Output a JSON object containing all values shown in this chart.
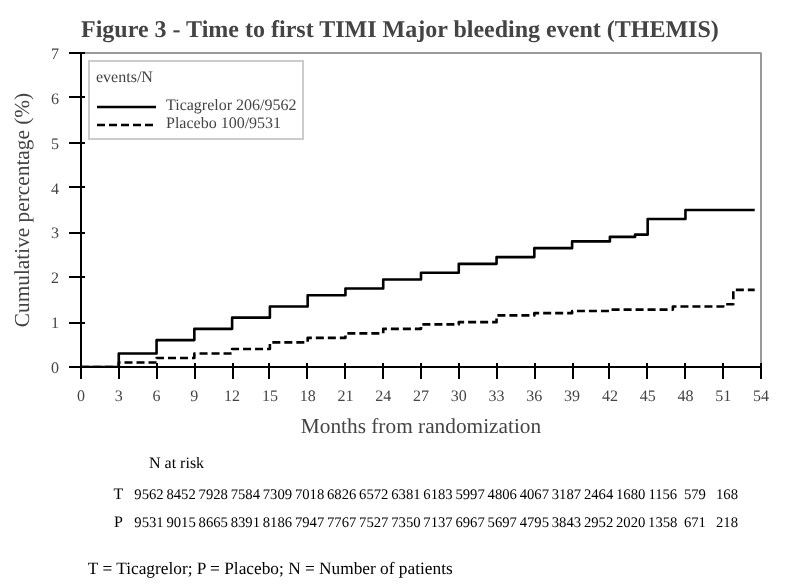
{
  "chart_data": {
    "type": "step",
    "title": "Figure 3 - Time to first TIMI Major bleeding event (THEMIS)",
    "xlabel": "Months from randomization",
    "ylabel": "Cumulative percentage (%)",
    "legend_title": "events/N",
    "legend": "top left",
    "grid": false,
    "xlim": [
      0,
      54
    ],
    "xticks": [
      0,
      3,
      6,
      9,
      12,
      15,
      18,
      21,
      24,
      27,
      30,
      33,
      36,
      39,
      42,
      45,
      48,
      51,
      54
    ],
    "ylim": [
      0,
      7
    ],
    "yticks": [
      0,
      1,
      2,
      3,
      4,
      5,
      6,
      7
    ],
    "series": [
      {
        "name": "Ticagrelor 206/9562",
        "color": "#000000",
        "line_style": "solid",
        "x": [
          0,
          3,
          6,
          9,
          12,
          15,
          18,
          21,
          24,
          27,
          30,
          33,
          36,
          39,
          42,
          44,
          45,
          48,
          53.5
        ],
        "values": [
          0,
          0.3,
          0.6,
          0.85,
          1.1,
          1.35,
          1.6,
          1.75,
          1.95,
          2.1,
          2.3,
          2.45,
          2.65,
          2.8,
          2.9,
          2.95,
          3.3,
          3.5,
          3.5
        ]
      },
      {
        "name": "Placebo 100/9531",
        "color": "#000000",
        "line_style": "dashed",
        "x": [
          0,
          3,
          6,
          9,
          12,
          15,
          18,
          21,
          24,
          27,
          30,
          33,
          36,
          39,
          42,
          47,
          51,
          51.8,
          53.5
        ],
        "values": [
          0,
          0.1,
          0.2,
          0.3,
          0.4,
          0.55,
          0.65,
          0.75,
          0.85,
          0.95,
          1.0,
          1.15,
          1.2,
          1.25,
          1.28,
          1.35,
          1.4,
          1.72,
          1.72
        ]
      }
    ],
    "annotations": [
      "N at risk",
      "T 9562 8452 7928 7584 7309 7018 6826 6572 6381 6183 5997 4806 4067 3187 2464 1680 1156 579 168",
      "P 9531 9015 8665 8391 8186 7947 7767 7527 7350 7137 6967 5697 4795 3843 2952 2020 1358 671 218",
      "T = Ticagrelor; P = Placebo; N = Number of patients"
    ]
  }
}
